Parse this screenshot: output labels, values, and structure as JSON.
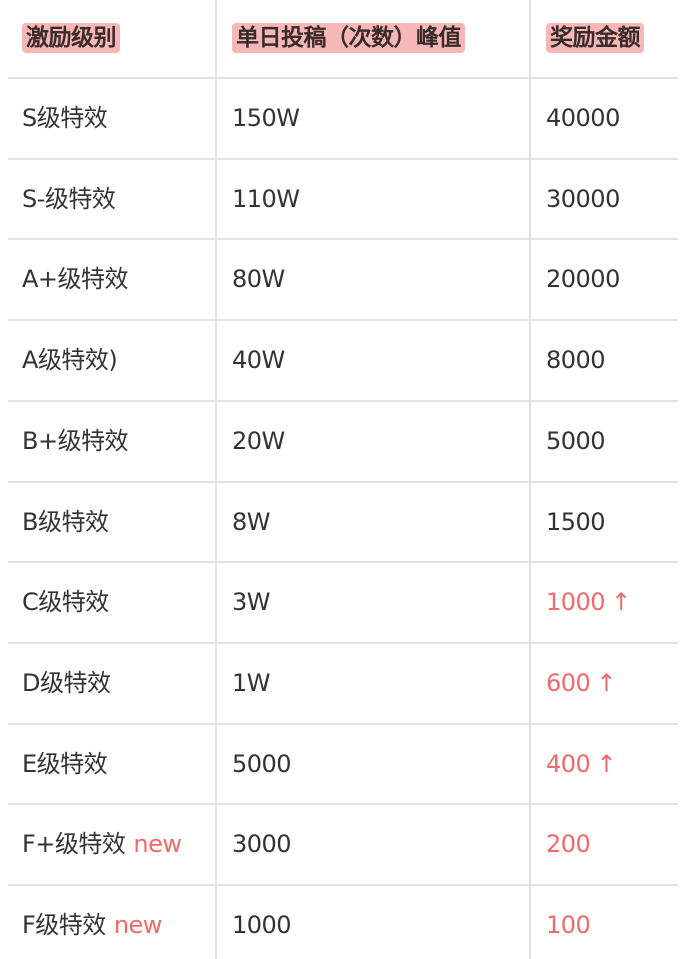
{
  "headers": [
    "激励级别",
    "单日投稿（次数）峰值",
    "奖励金额"
  ],
  "colors": {
    "header_highlight": "#f6b8b6",
    "accent_red": "#f06a6a",
    "text": "#333333",
    "grid": "#e2e2e2"
  },
  "rows": [
    {
      "level": "S级特效",
      "tag": "",
      "peak": "150W",
      "reward": "40000",
      "reward_red": false,
      "arrow": ""
    },
    {
      "level": "S-级特效",
      "tag": "",
      "peak": "110W",
      "reward": "30000",
      "reward_red": false,
      "arrow": ""
    },
    {
      "level": "A+级特效",
      "tag": "",
      "peak": "80W",
      "reward": "20000",
      "reward_red": false,
      "arrow": ""
    },
    {
      "level": "A级特效)",
      "tag": "",
      "peak": "40W",
      "reward": "8000",
      "reward_red": false,
      "arrow": ""
    },
    {
      "level": "B+级特效",
      "tag": "",
      "peak": "20W",
      "reward": "5000",
      "reward_red": false,
      "arrow": ""
    },
    {
      "level": "B级特效",
      "tag": "",
      "peak": "8W",
      "reward": "1500",
      "reward_red": false,
      "arrow": ""
    },
    {
      "level": "C级特效",
      "tag": "",
      "peak": "3W",
      "reward": "1000",
      "reward_red": true,
      "arrow": "↑"
    },
    {
      "level": "D级特效",
      "tag": "",
      "peak": "1W",
      "reward": "600",
      "reward_red": true,
      "arrow": "↑"
    },
    {
      "level": "E级特效",
      "tag": "",
      "peak": "5000",
      "reward": "400",
      "reward_red": true,
      "arrow": "↑"
    },
    {
      "level": "F+级特效",
      "tag": "new",
      "peak": "3000",
      "reward": "200",
      "reward_red": true,
      "arrow": ""
    },
    {
      "level": "F级特效",
      "tag": "new",
      "peak": "1000",
      "reward": "100",
      "reward_red": true,
      "arrow": ""
    }
  ]
}
